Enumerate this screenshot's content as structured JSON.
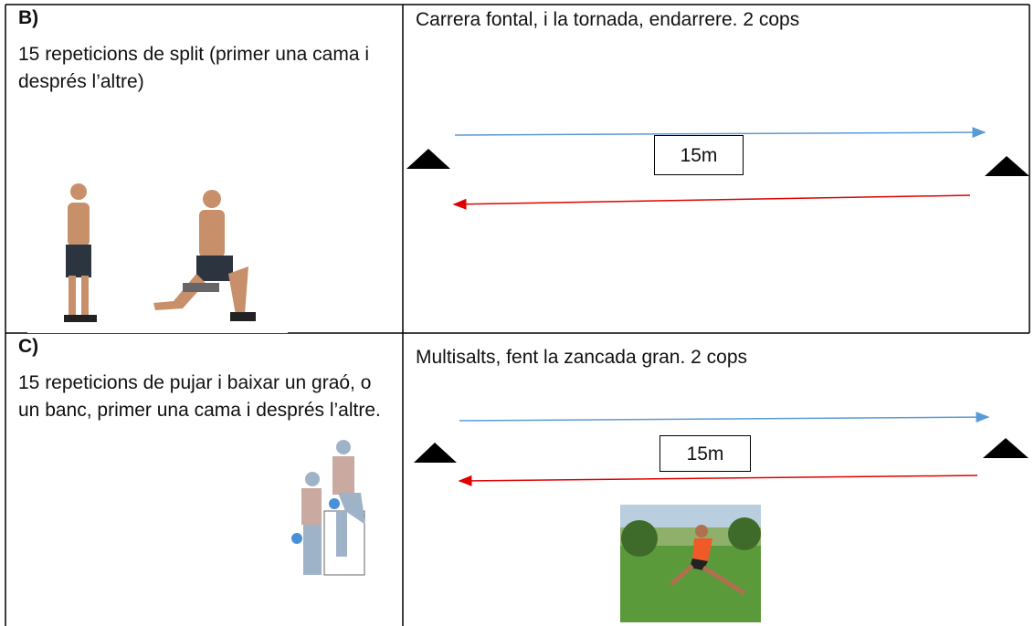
{
  "rows": [
    {
      "label": "B)",
      "description": "15 repeticions de split (primer una cama i després l’altre)",
      "exercise": "Carrera fontal, i la tornada, endarrere. 2 cops",
      "distance": "15m"
    },
    {
      "label": "C)",
      "description": "15 repeticions de pujar i baixar un graó, o un banc, primer una cama i després l’altre.",
      "exercise": "Multisalts, fent la zancada gran. 2 cops",
      "distance": "15m"
    }
  ]
}
